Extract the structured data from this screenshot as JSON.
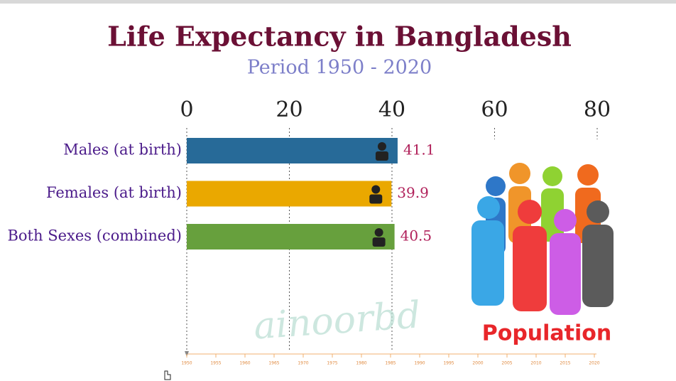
{
  "chart_data": {
    "type": "bar",
    "orientation": "horizontal",
    "title": "Life Expectancy in Bangladesh",
    "subtitle": "Period 1950 - 2020",
    "categories": [
      "Males (at birth)",
      "Females (at birth)",
      "Both Sexes (combined)"
    ],
    "values": [
      41.1,
      39.9,
      40.5
    ],
    "colors": [
      "#276a98",
      "#eaa800",
      "#67a03d"
    ],
    "xlim": [
      0,
      80
    ],
    "xticks": [
      0,
      20,
      40,
      60,
      80
    ],
    "grid": true,
    "timeline_ticks": [
      1950,
      1955,
      1960,
      1965,
      1970,
      1975,
      1980,
      1985,
      1990,
      1995,
      2000,
      2005,
      2010,
      2015,
      2020
    ],
    "watermark": "ainoorbd",
    "image_caption": "Population"
  }
}
